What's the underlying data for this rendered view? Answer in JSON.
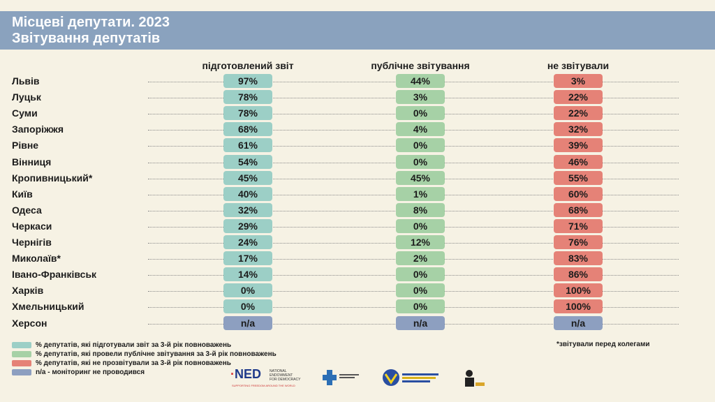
{
  "header": {
    "title": "Місцеві депутати. 2023",
    "subtitle": "Звітування депутатів"
  },
  "columns": [
    "підготовлений звіт",
    "публічне звітування",
    "не звітували"
  ],
  "rows": [
    {
      "city": "Львів",
      "v": [
        "97%",
        "44%",
        "3%"
      ]
    },
    {
      "city": "Луцьк",
      "v": [
        "78%",
        "3%",
        "22%"
      ]
    },
    {
      "city": "Суми",
      "v": [
        "78%",
        "0%",
        "22%"
      ]
    },
    {
      "city": "Запоріжжя",
      "v": [
        "68%",
        "4%",
        "32%"
      ]
    },
    {
      "city": "Рівне",
      "v": [
        "61%",
        "0%",
        "39%"
      ]
    },
    {
      "city": "Вінниця",
      "v": [
        "54%",
        "0%",
        "46%"
      ]
    },
    {
      "city": "Кропивницький*",
      "v": [
        "45%",
        "45%",
        "55%"
      ]
    },
    {
      "city": "Київ",
      "v": [
        "40%",
        "1%",
        "60%"
      ]
    },
    {
      "city": "Одеса",
      "v": [
        "32%",
        "8%",
        "68%"
      ]
    },
    {
      "city": "Черкаси",
      "v": [
        "29%",
        "0%",
        "71%"
      ]
    },
    {
      "city": "Чернігів",
      "v": [
        "24%",
        "12%",
        "76%"
      ]
    },
    {
      "city": "Миколаїв*",
      "v": [
        "17%",
        "2%",
        "83%"
      ]
    },
    {
      "city": "Івано-Франківськ",
      "v": [
        "14%",
        "0%",
        "86%"
      ]
    },
    {
      "city": "Харків",
      "v": [
        "0%",
        "0%",
        "100%"
      ]
    },
    {
      "city": "Хмельницький",
      "v": [
        "0%",
        "0%",
        "100%"
      ]
    },
    {
      "city": "Херсон",
      "v": [
        "n/a",
        "n/a",
        "n/a"
      ]
    }
  ],
  "legend": [
    {
      "text": "% депутатів, які підготували звіт за 3-й рік повноважень",
      "color": "#9ccfc6"
    },
    {
      "text": "% депутатів, які провели публічне звітування за 3-й рік повноважень",
      "color": "#a6d1a6"
    },
    {
      "text": "% депутатів, які не прозвітували за 3-й рік повноважень",
      "color": "#e58277"
    },
    {
      "text": "n/a - моніторинг не проводився",
      "color": "#8d9fc0"
    }
  ],
  "note": "*звітували перед колегами",
  "colors": {
    "header": "#8aa2be",
    "col1": "#9ccfc6",
    "col2": "#a6d1a6",
    "col3": "#e58277",
    "na": "#8d9fc0"
  },
  "logos": {
    "ned_mark": "NED",
    "ned_text": "NATIONAL ENDOWMENT FOR DEMOCRACY",
    "ned_tagline": "SUPPORTING FREEDOM AROUND THE WORLD"
  },
  "chart_data": {
    "type": "table",
    "title": "Місцеві депутати. 2023 — Звітування депутатів",
    "categories": [
      "Львів",
      "Луцьк",
      "Суми",
      "Запоріжжя",
      "Рівне",
      "Вінниця",
      "Кропивницький*",
      "Київ",
      "Одеса",
      "Черкаси",
      "Чернігів",
      "Миколаїв*",
      "Івано-Франківськ",
      "Харків",
      "Хмельницький",
      "Херсон"
    ],
    "series": [
      {
        "name": "підготовлений звіт",
        "values": [
          97,
          78,
          78,
          68,
          61,
          54,
          45,
          40,
          32,
          29,
          24,
          17,
          14,
          0,
          0,
          null
        ]
      },
      {
        "name": "публічне звітування",
        "values": [
          44,
          3,
          0,
          4,
          0,
          0,
          45,
          1,
          8,
          0,
          12,
          2,
          0,
          0,
          0,
          null
        ]
      },
      {
        "name": "не звітували",
        "values": [
          3,
          22,
          22,
          32,
          39,
          46,
          55,
          60,
          68,
          71,
          76,
          83,
          86,
          100,
          100,
          null
        ]
      }
    ]
  }
}
